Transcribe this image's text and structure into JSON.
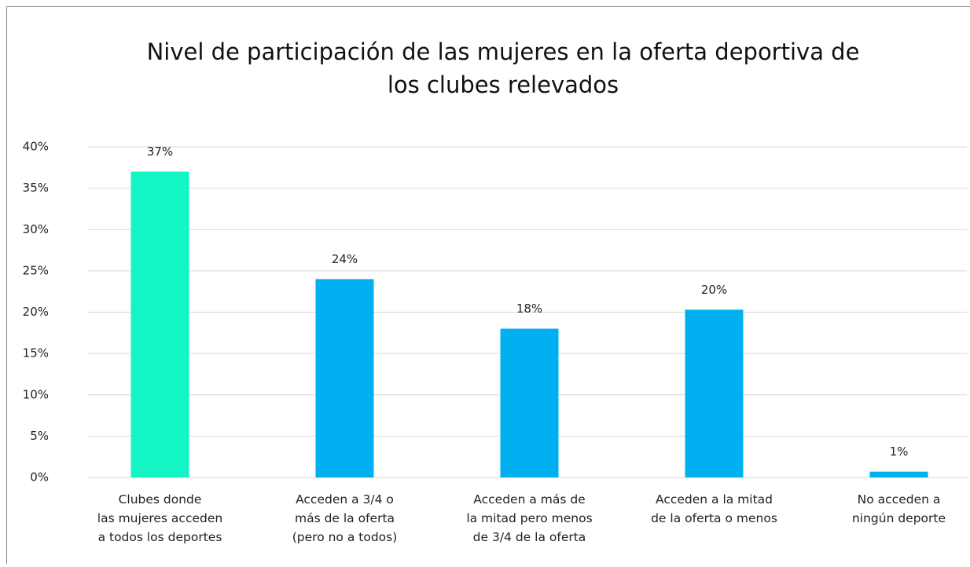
{
  "chart_data": {
    "type": "bar",
    "title": "Nivel de participación de las mujeres en la oferta deportiva de\nlos clubes relevados",
    "categories": [
      "Clubes donde\nlas mujeres acceden\na todos los deportes",
      "Acceden a 3/4 o\nmás de la oferta\n(pero no a todos)",
      "Acceden a más de\nla mitad pero menos\nde 3/4 de la oferta",
      "Acceden a la mitad\nde la oferta o menos",
      "No acceden a\nningún deporte"
    ],
    "values": [
      37,
      24,
      18,
      20.3,
      0.7
    ],
    "value_labels": [
      "37%",
      "24%",
      "18%",
      "20%",
      "1%"
    ],
    "colors": [
      "#13f5c4",
      "#00b0f0",
      "#00b0f0",
      "#00b0f0",
      "#00b0f0"
    ],
    "ylim": [
      0,
      40
    ],
    "yticks": [
      {
        "value": 0,
        "label": "0%"
      },
      {
        "value": 5,
        "label": "5%"
      },
      {
        "value": 10,
        "label": "10%"
      },
      {
        "value": 15,
        "label": "15%"
      },
      {
        "value": 20,
        "label": "20%"
      },
      {
        "value": 25,
        "label": "25%"
      },
      {
        "value": 30,
        "label": "30%"
      },
      {
        "value": 35,
        "label": "35%"
      },
      {
        "value": 40,
        "label": "40%"
      }
    ],
    "grid": true
  }
}
